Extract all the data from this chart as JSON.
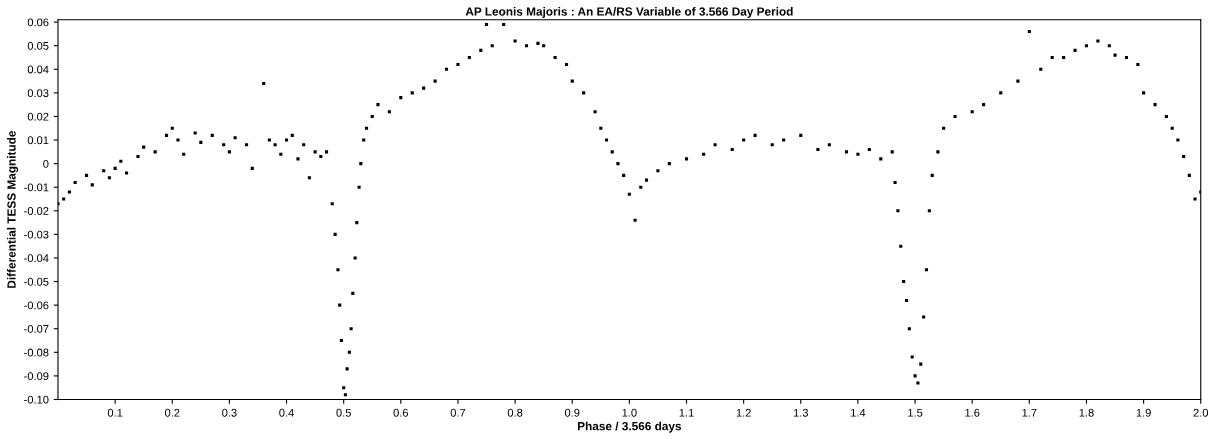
{
  "chart_data": {
    "type": "scatter",
    "title": "AP Leonis Majoris : An EA/RS Variable of 3.566 Day Period",
    "xlabel": "Phase / 3.566 days",
    "ylabel": "Differential TESS Magnitude",
    "x": [
      0.0,
      0.01,
      0.02,
      0.03,
      0.05,
      0.06,
      0.08,
      0.09,
      0.1,
      0.11,
      0.12,
      0.14,
      0.15,
      0.17,
      0.19,
      0.2,
      0.21,
      0.22,
      0.24,
      0.25,
      0.27,
      0.29,
      0.3,
      0.31,
      0.33,
      0.34,
      0.36,
      0.37,
      0.38,
      0.39,
      0.4,
      0.41,
      0.42,
      0.43,
      0.44,
      0.45,
      0.46,
      0.47,
      0.48,
      0.485,
      0.49,
      0.493,
      0.496,
      0.5,
      0.503,
      0.506,
      0.51,
      0.513,
      0.516,
      0.52,
      0.523,
      0.527,
      0.53,
      0.535,
      0.54,
      0.55,
      0.56,
      0.58,
      0.6,
      0.62,
      0.64,
      0.66,
      0.68,
      0.7,
      0.72,
      0.74,
      0.75,
      0.76,
      0.78,
      0.8,
      0.82,
      0.84,
      0.85,
      0.87,
      0.89,
      0.9,
      0.92,
      0.94,
      0.95,
      0.96,
      0.97,
      0.98,
      0.99,
      1.0,
      1.01,
      1.02,
      1.03,
      1.05,
      1.07,
      1.1,
      1.13,
      1.15,
      1.18,
      1.2,
      1.22,
      1.25,
      1.27,
      1.3,
      1.33,
      1.35,
      1.38,
      1.4,
      1.42,
      1.44,
      1.46,
      1.465,
      1.47,
      1.475,
      1.48,
      1.485,
      1.49,
      1.495,
      1.5,
      1.505,
      1.51,
      1.515,
      1.52,
      1.525,
      1.53,
      1.54,
      1.55,
      1.57,
      1.6,
      1.62,
      1.65,
      1.68,
      1.7,
      1.72,
      1.74,
      1.76,
      1.78,
      1.8,
      1.82,
      1.84,
      1.85,
      1.87,
      1.89,
      1.9,
      1.92,
      1.94,
      1.95,
      1.96,
      1.97,
      1.98,
      1.99,
      2.0
    ],
    "values": [
      -0.017,
      -0.015,
      -0.012,
      -0.008,
      -0.005,
      -0.009,
      -0.003,
      -0.006,
      -0.002,
      0.001,
      -0.004,
      0.003,
      0.007,
      0.005,
      0.012,
      0.015,
      0.01,
      0.004,
      0.013,
      0.009,
      0.012,
      0.008,
      0.005,
      0.011,
      0.008,
      -0.002,
      0.034,
      0.01,
      0.008,
      0.004,
      0.01,
      0.012,
      0.002,
      0.008,
      -0.006,
      0.005,
      0.003,
      0.005,
      -0.017,
      -0.03,
      -0.045,
      -0.06,
      -0.075,
      -0.095,
      -0.098,
      -0.087,
      -0.08,
      -0.07,
      -0.055,
      -0.04,
      -0.025,
      -0.01,
      0.0,
      0.01,
      0.015,
      0.02,
      0.025,
      0.022,
      0.028,
      0.03,
      0.032,
      0.035,
      0.04,
      0.042,
      0.045,
      0.048,
      0.059,
      0.05,
      0.059,
      0.052,
      0.05,
      0.051,
      0.05,
      0.045,
      0.042,
      0.035,
      0.03,
      0.022,
      0.015,
      0.01,
      0.005,
      0.0,
      -0.005,
      -0.013,
      -0.024,
      -0.01,
      -0.007,
      -0.003,
      0.0,
      0.002,
      0.004,
      0.008,
      0.006,
      0.01,
      0.012,
      0.008,
      0.01,
      0.012,
      0.006,
      0.008,
      0.005,
      0.004,
      0.006,
      0.002,
      0.005,
      -0.008,
      -0.02,
      -0.035,
      -0.05,
      -0.058,
      -0.07,
      -0.082,
      -0.09,
      -0.093,
      -0.085,
      -0.065,
      -0.045,
      -0.02,
      -0.005,
      0.005,
      0.015,
      0.02,
      0.022,
      0.025,
      0.03,
      0.035,
      0.056,
      0.04,
      0.045,
      0.045,
      0.048,
      0.05,
      0.052,
      0.05,
      0.046,
      0.045,
      0.042,
      0.03,
      0.025,
      0.02,
      0.015,
      0.01,
      0.003,
      -0.005,
      -0.015,
      -0.012
    ],
    "color": "#000000",
    "marker": "square",
    "grid": false,
    "xlim": [
      0.0,
      2.0
    ],
    "xticks": [
      0.1,
      0.2,
      0.3,
      0.4,
      0.5,
      0.6,
      0.7,
      0.8,
      0.9,
      {
        "value": 1.0,
        "label": "1.0"
      },
      1.1,
      1.2,
      1.3,
      1.4,
      1.5,
      1.6,
      1.7,
      1.8,
      1.9,
      {
        "value": 2.0,
        "label": "2.0"
      }
    ],
    "ylim": [
      -0.1,
      0.061
    ],
    "yticks": [
      0.06,
      0.05,
      0.04,
      0.03,
      0.02,
      0.01,
      0,
      -0.01,
      -0.02,
      -0.03,
      -0.04,
      -0.05,
      -0.06,
      -0.07,
      -0.08,
      -0.09,
      {
        "value": -0.1,
        "label": "-0.10"
      }
    ]
  }
}
